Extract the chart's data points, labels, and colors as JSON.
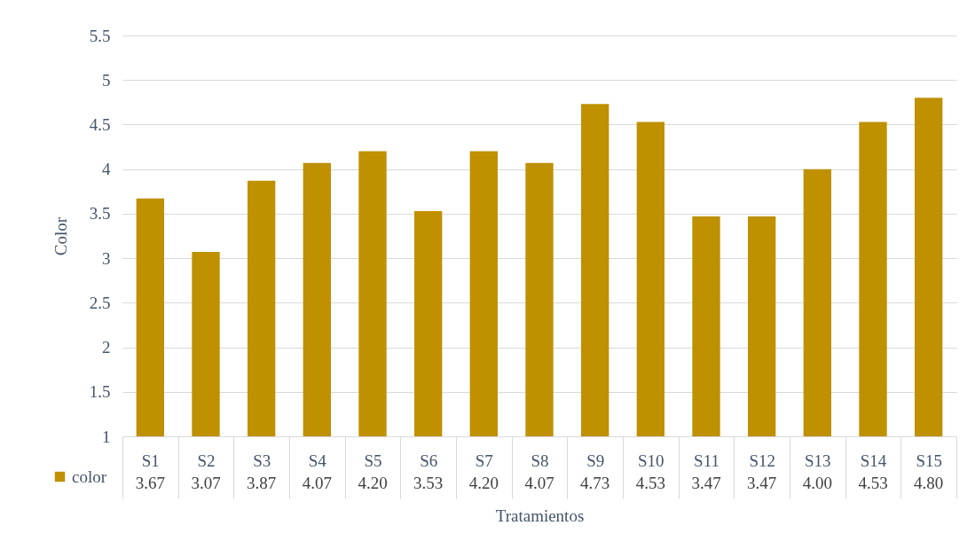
{
  "chart_data": {
    "type": "bar",
    "xlabel": "Tratamientos",
    "ylabel": "Color",
    "categories": [
      "S1",
      "S2",
      "S3",
      "S4",
      "S5",
      "S6",
      "S7",
      "S8",
      "S9",
      "S10",
      "S11",
      "S12",
      "S13",
      "S14",
      "S15"
    ],
    "series": [
      {
        "name": "color",
        "color": "#bf9000",
        "values": [
          3.67,
          3.07,
          3.87,
          4.07,
          4.2,
          3.53,
          4.2,
          4.07,
          4.73,
          4.53,
          3.47,
          3.47,
          4.0,
          4.53,
          4.8
        ],
        "value_labels": [
          "3.67",
          "3.07",
          "3.87",
          "4.07",
          "4.20",
          "3.53",
          "4.20",
          "4.07",
          "4.73",
          "4.53",
          "3.47",
          "3.47",
          "4.00",
          "4.53",
          "4.80"
        ]
      }
    ],
    "ylim": [
      1,
      5.5
    ],
    "yticks": [
      1,
      1.5,
      2,
      2.5,
      3,
      3.5,
      4,
      4.5,
      5,
      5.5
    ],
    "grid": "y",
    "legend": "bottom left"
  }
}
